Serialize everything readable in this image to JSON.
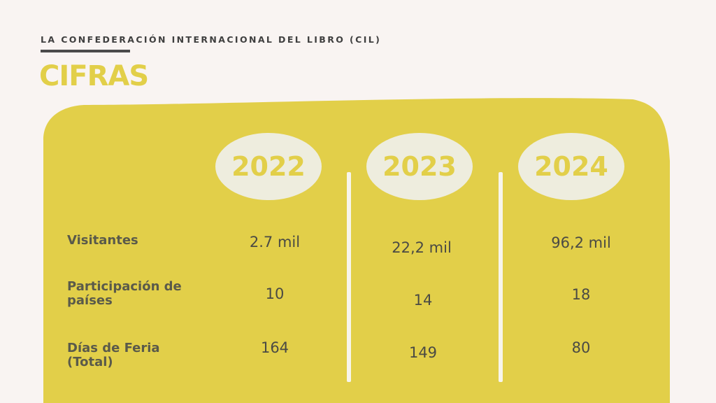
{
  "header": {
    "organization": "LA CONFEDERACIÓN INTERNACIONAL DEL LIBRO (CIL)",
    "title": "CIFRAS"
  },
  "colors": {
    "background": "#f9f4f2",
    "panel": "#e2cf49",
    "year_pill": "#eeedde",
    "divider": "#f7f5ec",
    "text_dark": "#4a4a44"
  },
  "table": {
    "years": [
      "2022",
      "2023",
      "2024"
    ],
    "rows": [
      {
        "label": "Visitantes",
        "values": [
          "2.7 mil",
          "22,2 mil",
          "96,2 mil"
        ]
      },
      {
        "label": "Participación de países",
        "values": [
          "10",
          "14",
          "18"
        ]
      },
      {
        "label": "Días de Feria (Total)",
        "values": [
          "164",
          "149",
          "80"
        ]
      }
    ]
  }
}
